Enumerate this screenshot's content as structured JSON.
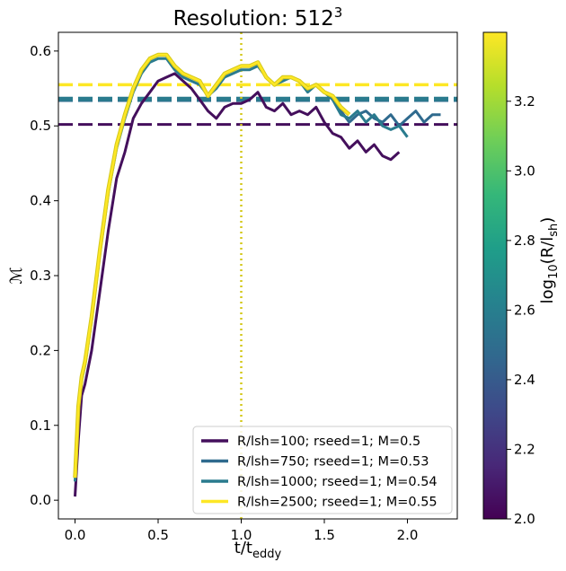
{
  "chart_data": {
    "type": "line",
    "title": "Resolution: 512",
    "title_superscript": "3",
    "xlabel": "t/t",
    "xlabel_subscript": "eddy",
    "ylabel": "ℳ",
    "xlim": [
      -0.1,
      2.3
    ],
    "ylim": [
      -0.025,
      0.625
    ],
    "xticks": [
      "0.0",
      "0.5",
      "1.0",
      "1.5",
      "2.0"
    ],
    "yticks": [
      "0.0",
      "0.1",
      "0.2",
      "0.3",
      "0.4",
      "0.5",
      "0.6"
    ],
    "vline": {
      "x": 1.0,
      "style": "dotted",
      "color": "#d4c81a"
    },
    "legend_position": "lower-right",
    "series": [
      {
        "name": "R/lsh=100; rseed=1; M=0.5",
        "color": "#440f5c",
        "mean": 0.502,
        "x": [
          0.0,
          0.02,
          0.04,
          0.06,
          0.1,
          0.15,
          0.2,
          0.25,
          0.3,
          0.35,
          0.4,
          0.45,
          0.5,
          0.55,
          0.6,
          0.65,
          0.7,
          0.75,
          0.8,
          0.85,
          0.9,
          0.95,
          1.0,
          1.05,
          1.1,
          1.15,
          1.2,
          1.25,
          1.3,
          1.35,
          1.4,
          1.45,
          1.5,
          1.55,
          1.6,
          1.65,
          1.7,
          1.75,
          1.8,
          1.85,
          1.9,
          1.95
        ],
        "y": [
          0.005,
          0.08,
          0.14,
          0.155,
          0.2,
          0.28,
          0.36,
          0.43,
          0.465,
          0.51,
          0.53,
          0.545,
          0.56,
          0.565,
          0.57,
          0.56,
          0.55,
          0.535,
          0.52,
          0.51,
          0.525,
          0.53,
          0.53,
          0.535,
          0.545,
          0.525,
          0.52,
          0.53,
          0.515,
          0.52,
          0.515,
          0.525,
          0.505,
          0.49,
          0.485,
          0.47,
          0.48,
          0.465,
          0.475,
          0.46,
          0.455,
          0.465
        ]
      },
      {
        "name": "R/lsh=750; rseed=1; M=0.53",
        "color": "#2f6a8e",
        "mean": 0.535,
        "x": [
          1.55,
          1.6,
          1.65,
          1.7,
          1.75,
          1.8,
          1.85,
          1.9,
          1.95,
          2.0,
          2.05,
          2.1,
          2.15,
          2.2
        ],
        "y": [
          0.535,
          0.52,
          0.505,
          0.515,
          0.52,
          0.51,
          0.505,
          0.515,
          0.5,
          0.51,
          0.52,
          0.505,
          0.515,
          0.515
        ]
      },
      {
        "name": "R/lsh=1000; rseed=1; M=0.54",
        "color": "#2a7b8e",
        "mean": 0.536,
        "x": [
          0.0,
          0.02,
          0.04,
          0.06,
          0.1,
          0.15,
          0.2,
          0.25,
          0.3,
          0.35,
          0.4,
          0.45,
          0.5,
          0.55,
          0.6,
          0.65,
          0.7,
          0.75,
          0.8,
          0.85,
          0.9,
          0.95,
          1.0,
          1.05,
          1.1,
          1.15,
          1.2,
          1.25,
          1.3,
          1.35,
          1.4,
          1.45,
          1.5,
          1.55,
          1.6,
          1.65,
          1.7,
          1.75,
          1.8,
          1.85,
          1.9,
          1.95,
          2.0
        ],
        "y": [
          0.025,
          0.12,
          0.16,
          0.18,
          0.24,
          0.33,
          0.41,
          0.47,
          0.51,
          0.545,
          0.57,
          0.585,
          0.59,
          0.59,
          0.575,
          0.565,
          0.56,
          0.555,
          0.54,
          0.55,
          0.565,
          0.57,
          0.575,
          0.575,
          0.58,
          0.565,
          0.555,
          0.56,
          0.565,
          0.56,
          0.545,
          0.555,
          0.545,
          0.535,
          0.515,
          0.51,
          0.52,
          0.505,
          0.515,
          0.5,
          0.495,
          0.5,
          0.485
        ]
      },
      {
        "name": "R/lsh=2500; rseed=1; M=0.55",
        "color": "#fde725",
        "mean": 0.555,
        "x": [
          0.0,
          0.02,
          0.04,
          0.06,
          0.1,
          0.15,
          0.2,
          0.25,
          0.3,
          0.35,
          0.4,
          0.45,
          0.5,
          0.55,
          0.6,
          0.65,
          0.7,
          0.75,
          0.8,
          0.85,
          0.9,
          0.95,
          1.0,
          1.05,
          1.1,
          1.15,
          1.2,
          1.25,
          1.3,
          1.35,
          1.4,
          1.45,
          1.5,
          1.55,
          1.6,
          1.65
        ],
        "y": [
          0.03,
          0.125,
          0.165,
          0.185,
          0.245,
          0.335,
          0.415,
          0.475,
          0.515,
          0.55,
          0.575,
          0.59,
          0.595,
          0.595,
          0.58,
          0.57,
          0.565,
          0.56,
          0.54,
          0.555,
          0.57,
          0.575,
          0.58,
          0.58,
          0.585,
          0.565,
          0.555,
          0.565,
          0.565,
          0.56,
          0.55,
          0.555,
          0.545,
          0.54,
          0.525,
          0.515
        ]
      }
    ],
    "colorbar": {
      "label": "log",
      "label_subscript": "10",
      "label_suffix": "(R/l",
      "label_suffix_subscript": "sh",
      "label_close": ")",
      "min": 2.0,
      "max": 3.398,
      "ticks": [
        "2.0",
        "2.2",
        "2.4",
        "2.6",
        "2.8",
        "3.0",
        "3.2"
      ],
      "colormap": "viridis",
      "stops": [
        "#440154",
        "#482878",
        "#3e4989",
        "#31688e",
        "#26828e",
        "#1f9e89",
        "#35b779",
        "#6ece58",
        "#b5de2b",
        "#fde725"
      ]
    }
  }
}
